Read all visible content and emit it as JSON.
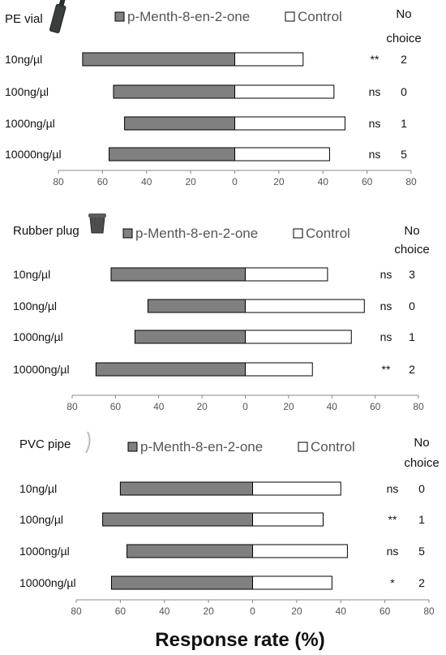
{
  "figure": {
    "xlabel": "Response rate (%)",
    "legend_series_a": "p-Menth-8-en-2-one",
    "legend_series_b": "Control",
    "no_choice_header_line1": "No",
    "no_choice_header_line2": "choice",
    "colors": {
      "series_a": "#808080",
      "series_b": "#ffffff",
      "outline": "#000000"
    }
  },
  "chart_data": [
    {
      "type": "bar",
      "orientation": "horizontal-diverging",
      "title": "PE vial",
      "icon": "vial-icon",
      "categories": [
        "10ng/µl",
        "100ng/µl",
        "1000ng/µl",
        "10000ng/µl"
      ],
      "series": [
        {
          "name": "p-Menth-8-en-2-one",
          "values": [
            69,
            55,
            50,
            57
          ]
        },
        {
          "name": "Control",
          "values": [
            31,
            45,
            50,
            43
          ]
        }
      ],
      "significance": [
        "**",
        "ns",
        "ns",
        "ns"
      ],
      "no_choice": [
        "2",
        "0",
        "1",
        "5"
      ],
      "xlim": [
        -80,
        80
      ],
      "xticks": [
        "80",
        "60",
        "40",
        "20",
        "0",
        "20",
        "40",
        "60",
        "80"
      ]
    },
    {
      "type": "bar",
      "orientation": "horizontal-diverging",
      "title": "Rubber plug",
      "icon": "rubber-plug-icon",
      "categories": [
        "10ng/µl",
        "100ng/µl",
        "1000ng/µl",
        "10000ng/µl"
      ],
      "series": [
        {
          "name": "p-Menth-8-en-2-one",
          "values": [
            62,
            45,
            51,
            69
          ]
        },
        {
          "name": "Control",
          "values": [
            38,
            55,
            49,
            31
          ]
        }
      ],
      "significance": [
        "ns",
        "ns",
        "ns",
        "**"
      ],
      "no_choice": [
        "3",
        "0",
        "1",
        "2"
      ],
      "xlim": [
        -80,
        80
      ],
      "xticks": [
        "80",
        "60",
        "40",
        "20",
        "0",
        "20",
        "40",
        "60",
        "80"
      ]
    },
    {
      "type": "bar",
      "orientation": "horizontal-diverging",
      "title": "PVC pipe",
      "icon": "pvc-pipe-icon",
      "categories": [
        "10ng/µl",
        "100ng/µl",
        "1000ng/µl",
        "10000ng/µl"
      ],
      "series": [
        {
          "name": "p-Menth-8-en-2-one",
          "values": [
            60,
            68,
            57,
            64
          ]
        },
        {
          "name": "Control",
          "values": [
            40,
            32,
            43,
            36
          ]
        }
      ],
      "significance": [
        "ns",
        "**",
        "ns",
        "*"
      ],
      "no_choice": [
        "0",
        "1",
        "5",
        "2"
      ],
      "xlim": [
        -80,
        80
      ],
      "xticks": [
        "80",
        "60",
        "40",
        "20",
        "0",
        "20",
        "40",
        "60",
        "80"
      ]
    }
  ]
}
